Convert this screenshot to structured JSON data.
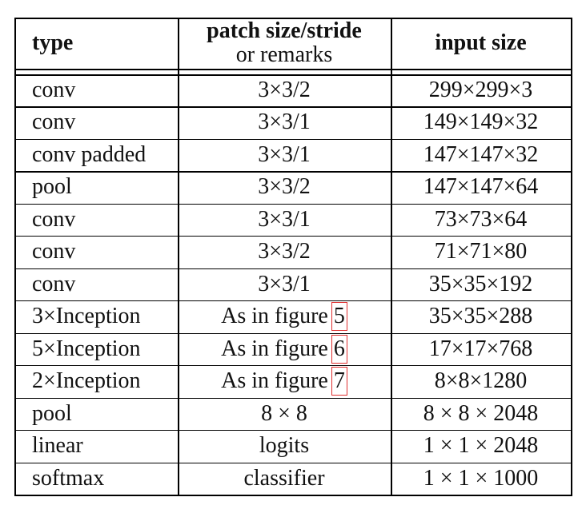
{
  "table": {
    "header": [
      [
        "type"
      ],
      [
        "patch size/stride",
        "or remarks"
      ],
      [
        "input size"
      ]
    ],
    "rows": [
      [
        "conv",
        "3×3/2",
        "299×299×3"
      ],
      [
        "conv",
        "3×3/1",
        "149×149×32"
      ],
      [
        "conv padded",
        "3×3/1",
        "147×147×32"
      ],
      [
        "pool",
        "3×3/2",
        "147×147×64"
      ],
      [
        "conv",
        "3×3/1",
        "73×73×64"
      ],
      [
        "conv",
        "3×3/2",
        "71×71×80"
      ],
      [
        "conv",
        "3×3/1",
        "35×35×192"
      ],
      [
        "3×Inception",
        {
          "text": "As in figure",
          "ref": "5"
        },
        "35×35×288"
      ],
      [
        "5×Inception",
        {
          "text": "As in figure",
          "ref": "6"
        },
        "17×17×768"
      ],
      [
        "2×Inception",
        {
          "text": "As in figure",
          "ref": "7"
        },
        "8×8×1280"
      ],
      [
        "pool",
        "8 × 8",
        "8 × 8 × 2048"
      ],
      [
        "linear",
        "logits",
        "1 × 1 × 2048"
      ],
      [
        "softmax",
        "classifier",
        "1 × 1 × 1000"
      ]
    ]
  }
}
